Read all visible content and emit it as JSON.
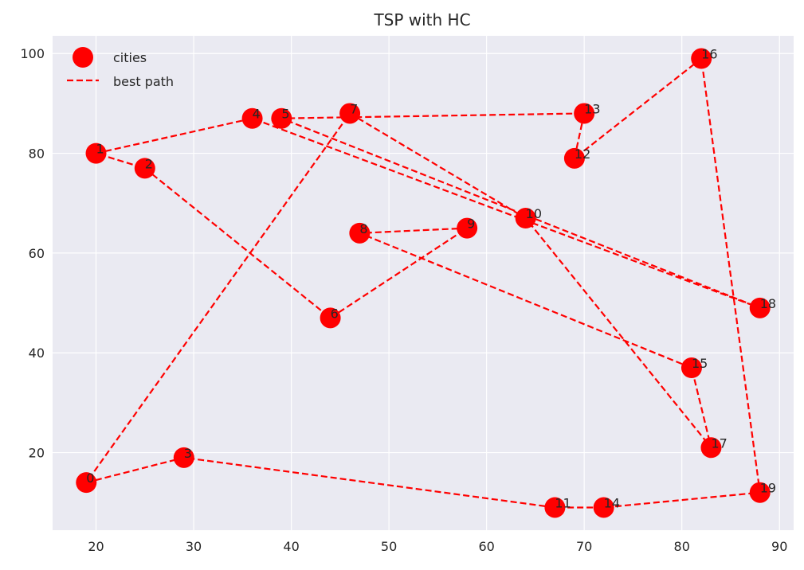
{
  "chart_data": {
    "type": "scatter",
    "title": "TSP with HC",
    "xlabel": "",
    "ylabel": "",
    "xlim": [
      15.55,
      91.45
    ],
    "ylim": [
      4.45,
      103.55
    ],
    "xticks": [
      20,
      30,
      40,
      50,
      60,
      70,
      80,
      90
    ],
    "yticks": [
      20,
      40,
      60,
      80,
      100
    ],
    "grid": true,
    "legend_position": "top-left",
    "colors": {
      "plot_background": "#eaeaf2",
      "grid": "#ffffff",
      "series": "#ff0000"
    },
    "legend": [
      "cities",
      "best path"
    ],
    "cities": {
      "name": "cities",
      "points": [
        {
          "label": "0",
          "x": 19,
          "y": 14
        },
        {
          "label": "1",
          "x": 20,
          "y": 80
        },
        {
          "label": "2",
          "x": 25,
          "y": 77
        },
        {
          "label": "3",
          "x": 29,
          "y": 19
        },
        {
          "label": "4",
          "x": 36,
          "y": 87
        },
        {
          "label": "5",
          "x": 39,
          "y": 87
        },
        {
          "label": "6",
          "x": 44,
          "y": 47
        },
        {
          "label": "7",
          "x": 46,
          "y": 88
        },
        {
          "label": "8",
          "x": 47,
          "y": 64
        },
        {
          "label": "9",
          "x": 58,
          "y": 65
        },
        {
          "label": "10",
          "x": 64,
          "y": 67
        },
        {
          "label": "11",
          "x": 67,
          "y": 9
        },
        {
          "label": "12",
          "x": 69,
          "y": 79
        },
        {
          "label": "13",
          "x": 70,
          "y": 88
        },
        {
          "label": "14",
          "x": 72,
          "y": 9
        },
        {
          "label": "15",
          "x": 81,
          "y": 37
        },
        {
          "label": "16",
          "x": 82,
          "y": 99
        },
        {
          "label": "17",
          "x": 83,
          "y": 21
        },
        {
          "label": "18",
          "x": 88,
          "y": 49
        },
        {
          "label": "19",
          "x": 88,
          "y": 12
        }
      ]
    },
    "best_path": {
      "name": "best path",
      "order": [
        0,
        3,
        11,
        14,
        19,
        16,
        12,
        13,
        5,
        18,
        4,
        1,
        2,
        6,
        9,
        8,
        15,
        17,
        10,
        7,
        0
      ]
    }
  }
}
